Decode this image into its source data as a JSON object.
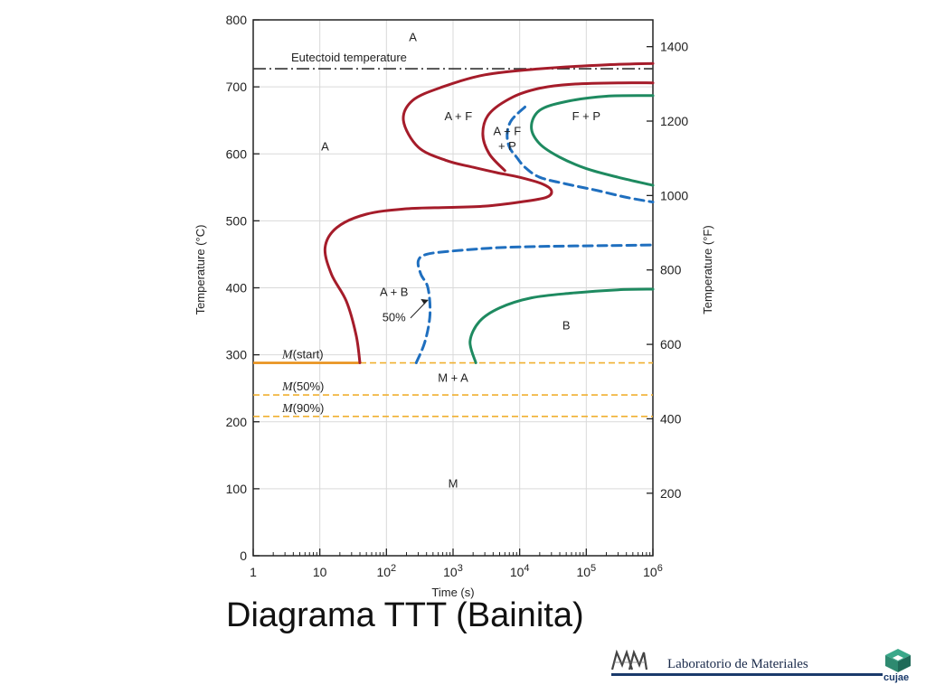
{
  "slide": {
    "title": "Diagrama TTT (Bainita)",
    "footer_label": "Laboratorio de Materiales",
    "footer_brand": "cujae"
  },
  "chart_data": {
    "type": "line",
    "xlabel": "Time (s)",
    "ylabel": "Temperature (°C)",
    "ylabel_right": "Temperature (°F)",
    "x_scale": "log",
    "xlim": [
      1,
      1000000
    ],
    "ylim": [
      0,
      800
    ],
    "x_ticks": [
      {
        "value": 1,
        "base": "1",
        "exp": ""
      },
      {
        "value": 10,
        "base": "10",
        "exp": ""
      },
      {
        "value": 100,
        "base": "10",
        "exp": "2"
      },
      {
        "value": 1000,
        "base": "10",
        "exp": "3"
      },
      {
        "value": 10000,
        "base": "10",
        "exp": "4"
      },
      {
        "value": 100000,
        "base": "10",
        "exp": "5"
      },
      {
        "value": 1000000,
        "base": "10",
        "exp": "6"
      }
    ],
    "y_ticks": [
      0,
      100,
      200,
      300,
      400,
      500,
      600,
      700,
      800
    ],
    "y_ticks_right_F": [
      200,
      400,
      600,
      800,
      1000,
      1200,
      1400
    ],
    "grid": true,
    "reference_lines": [
      {
        "label": "Eutectoid temperature",
        "y": 727,
        "style": "dash-dot",
        "color": "#333333"
      },
      {
        "label": "M(start)",
        "y": 288,
        "style": "dashed",
        "color": "#f0b030",
        "solid_to_x": 40
      },
      {
        "label": "M(50%)",
        "y": 240,
        "style": "dashed",
        "color": "#f0b030"
      },
      {
        "label": "M(90%)",
        "y": 208,
        "style": "dashed",
        "color": "#f0b030"
      }
    ],
    "series": [
      {
        "color": "#a51c2a",
        "style": "solid",
        "x": [
          40,
          35,
          25,
          15,
          12,
          18,
          50,
          200,
          800,
          3000,
          10000,
          25000,
          30000,
          22000,
          10000,
          4500,
          2000,
          800,
          300,
          180,
          250,
          700,
          3000,
          20000,
          200000,
          1000000
        ],
        "y": [
          288,
          330,
          380,
          420,
          460,
          490,
          510,
          518,
          520,
          522,
          528,
          535,
          545,
          555,
          565,
          572,
          580,
          590,
          610,
          650,
          680,
          700,
          718,
          727,
          733,
          735
        ]
      },
      {
        "color": "#a51c2a",
        "style": "solid",
        "x": [
          6000,
          3500,
          2800,
          3500,
          8000,
          20000,
          60000,
          300000,
          1000000
        ],
        "y": [
          575,
          600,
          630,
          660,
          685,
          698,
          704,
          706,
          706
        ]
      },
      {
        "color": "#1f6fbf",
        "style": "dashed",
        "x": [
          280,
          380,
          450,
          420,
          330,
          300,
          400,
          1000,
          5000,
          30000,
          200000,
          1000000
        ],
        "y": [
          288,
          320,
          360,
          400,
          420,
          440,
          450,
          455,
          460,
          462,
          463,
          464
        ]
      },
      {
        "color": "#1f6fbf",
        "style": "dashed",
        "x": [
          12000,
          7500,
          6500,
          7000,
          9000,
          12000,
          20000,
          50000,
          150000,
          400000,
          1000000
        ],
        "y": [
          670,
          650,
          630,
          610,
          595,
          580,
          565,
          555,
          545,
          535,
          528
        ]
      },
      {
        "color": "#1e8a60",
        "style": "solid",
        "x": [
          2200,
          1800,
          2500,
          5000,
          15000,
          60000,
          300000,
          1000000
        ],
        "y": [
          288,
          320,
          350,
          370,
          385,
          392,
          397,
          398
        ]
      },
      {
        "color": "#1e8a60",
        "style": "solid",
        "x": [
          1000000,
          300000,
          100000,
          40000,
          20000,
          15000,
          20000,
          50000,
          200000,
          1000000
        ],
        "y": [
          553,
          565,
          578,
          595,
          615,
          640,
          665,
          678,
          686,
          687
        ]
      }
    ],
    "annotations": [
      {
        "text": "A",
        "x": 250,
        "y": 768
      },
      {
        "text": "A",
        "x": 12,
        "y": 605
      },
      {
        "text": "A + F",
        "x": 1200,
        "y": 650
      },
      {
        "text": "A + F",
        "x": 6500,
        "y": 628
      },
      {
        "text": "+ P",
        "x": 6500,
        "y": 606
      },
      {
        "text": "F + P",
        "x": 100000,
        "y": 650
      },
      {
        "text": "A + B",
        "x": 130,
        "y": 388
      },
      {
        "text": "50%",
        "x": 130,
        "y": 350
      },
      {
        "text": "B",
        "x": 50000,
        "y": 338
      },
      {
        "text": "M + A",
        "x": 1000,
        "y": 260
      },
      {
        "text": "M",
        "x": 1000,
        "y": 102
      }
    ]
  }
}
